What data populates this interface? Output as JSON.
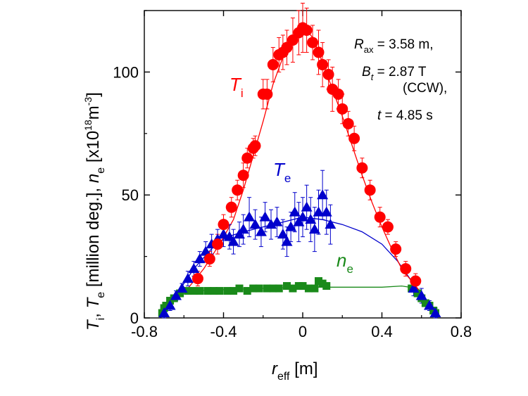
{
  "chart_data": {
    "type": "scatter",
    "xlim": [
      -0.8,
      0.8
    ],
    "ylim": [
      0,
      125
    ],
    "x_ticks": [
      "-0.8",
      "-0.4",
      "0",
      "0.4",
      "0.8"
    ],
    "x_tick_values": [
      -0.8,
      -0.4,
      0,
      0.4,
      0.8
    ],
    "y_ticks": [
      "0",
      "50",
      "100"
    ],
    "y_tick_values": [
      0,
      50,
      100
    ],
    "xlabel": {
      "sym": "r",
      "sub": "eff",
      "unit": " [m]"
    },
    "ylabel": {
      "t1": "T",
      "t1_sub": "i",
      "sep1": ", ",
      "t2": "T",
      "t2_sub": "e",
      "mid": " [million deg.], ",
      "t3": "n",
      "t3_sub": "e",
      "unit": " [x10",
      "exp": "18",
      "unit2": "m",
      "exp2": "-3",
      "close": "]"
    },
    "annotation": {
      "line1_sym": "R",
      "line1_sub": "ax",
      "line1_val": " = 3.58 m,",
      "line2_sym": "B",
      "line2_sub": "t",
      "line2_val": " = 2.87 T",
      "line3": "(CCW),",
      "line4_sym": "t",
      "line4_val": " = 4.85 s"
    },
    "series": [
      {
        "name": "T_i",
        "label_main": "T",
        "label_sub": "i",
        "color": "#ff0000",
        "marker": "circle",
        "points": [
          [
            -0.53,
            16
          ],
          [
            -0.47,
            24
          ],
          [
            -0.43,
            30
          ],
          [
            -0.4,
            38
          ],
          [
            -0.36,
            45
          ],
          [
            -0.33,
            52
          ],
          [
            -0.3,
            58
          ],
          [
            -0.28,
            65
          ],
          [
            -0.25,
            69
          ],
          [
            -0.24,
            70
          ],
          [
            -0.2,
            91
          ],
          [
            -0.18,
            91
          ],
          [
            -0.15,
            103
          ],
          [
            -0.12,
            107
          ],
          [
            -0.1,
            108
          ],
          [
            -0.08,
            110
          ],
          [
            -0.05,
            113
          ],
          [
            -0.02,
            116
          ],
          [
            0.0,
            118
          ],
          [
            0.02,
            117
          ],
          [
            0.05,
            112
          ],
          [
            0.08,
            108
          ],
          [
            0.1,
            103
          ],
          [
            0.13,
            99
          ],
          [
            0.15,
            93
          ],
          [
            0.18,
            91
          ],
          [
            0.2,
            85
          ],
          [
            0.23,
            79
          ],
          [
            0.26,
            73
          ],
          [
            0.3,
            61
          ],
          [
            0.34,
            52
          ],
          [
            0.39,
            41
          ],
          [
            0.43,
            37
          ],
          [
            0.47,
            28
          ],
          [
            0.52,
            20
          ],
          [
            0.57,
            15
          ]
        ],
        "errors": [
          3,
          3,
          4,
          4,
          4,
          4,
          5,
          4,
          4,
          4,
          6,
          6,
          7,
          7,
          7,
          7,
          9,
          9,
          10,
          9,
          7,
          9,
          9,
          6,
          9,
          6,
          6,
          5,
          5,
          4,
          4,
          4,
          3,
          3,
          3,
          3
        ],
        "curve": [
          [
            -0.58,
            12
          ],
          [
            -0.5,
            20
          ],
          [
            -0.42,
            30
          ],
          [
            -0.35,
            40
          ],
          [
            -0.3,
            52
          ],
          [
            -0.25,
            66
          ],
          [
            -0.2,
            80
          ],
          [
            -0.15,
            95
          ],
          [
            -0.1,
            106
          ],
          [
            -0.05,
            114
          ],
          [
            0.0,
            119
          ],
          [
            0.05,
            114
          ],
          [
            0.1,
            104
          ],
          [
            0.15,
            93
          ],
          [
            0.2,
            82
          ],
          [
            0.25,
            70
          ],
          [
            0.3,
            58
          ],
          [
            0.35,
            47
          ],
          [
            0.4,
            37
          ],
          [
            0.45,
            28
          ],
          [
            0.5,
            20
          ],
          [
            0.55,
            15
          ],
          [
            0.6,
            10
          ],
          [
            0.65,
            3
          ]
        ]
      },
      {
        "name": "T_e",
        "label_main": "T",
        "label_sub": "e",
        "color": "#0000cc",
        "marker": "triangle",
        "points": [
          [
            -0.7,
            2
          ],
          [
            -0.67,
            5
          ],
          [
            -0.64,
            9
          ],
          [
            -0.61,
            12
          ],
          [
            -0.58,
            16
          ],
          [
            -0.55,
            20
          ],
          [
            -0.52,
            24
          ],
          [
            -0.49,
            27
          ],
          [
            -0.46,
            30
          ],
          [
            -0.43,
            32
          ],
          [
            -0.4,
            34
          ],
          [
            -0.37,
            33
          ],
          [
            -0.35,
            31
          ],
          [
            -0.32,
            34
          ],
          [
            -0.3,
            36
          ],
          [
            -0.27,
            41
          ],
          [
            -0.24,
            38
          ],
          [
            -0.21,
            35
          ],
          [
            -0.19,
            41
          ],
          [
            -0.16,
            38
          ],
          [
            -0.13,
            39
          ],
          [
            -0.1,
            34
          ],
          [
            -0.08,
            31
          ],
          [
            -0.06,
            37
          ],
          [
            -0.04,
            43
          ],
          [
            -0.02,
            39
          ],
          [
            0.0,
            41
          ],
          [
            0.02,
            45
          ],
          [
            0.04,
            40
          ],
          [
            0.06,
            36
          ],
          [
            0.08,
            43
          ],
          [
            0.1,
            50
          ],
          [
            0.12,
            43
          ],
          [
            0.14,
            38
          ],
          [
            0.56,
            12
          ],
          [
            0.6,
            9
          ],
          [
            0.64,
            5
          ],
          [
            0.67,
            2
          ]
        ],
        "errors": [
          2,
          2,
          2,
          2,
          3,
          3,
          3,
          4,
          4,
          4,
          5,
          5,
          5,
          5,
          6,
          8,
          6,
          6,
          6,
          6,
          6,
          6,
          6,
          6,
          8,
          8,
          8,
          9,
          9,
          9,
          9,
          10,
          9,
          8,
          3,
          3,
          2,
          2
        ],
        "curve": [
          [
            -0.72,
            0
          ],
          [
            -0.65,
            8
          ],
          [
            -0.55,
            20
          ],
          [
            -0.45,
            29
          ],
          [
            -0.38,
            33
          ],
          [
            -0.3,
            35
          ],
          [
            -0.2,
            37
          ],
          [
            -0.1,
            39
          ],
          [
            0.0,
            41
          ],
          [
            0.1,
            40
          ],
          [
            0.2,
            38
          ],
          [
            0.3,
            35
          ],
          [
            0.4,
            30
          ],
          [
            0.48,
            23
          ],
          [
            0.55,
            15
          ],
          [
            0.6,
            9
          ],
          [
            0.65,
            3
          ],
          [
            0.68,
            0
          ]
        ]
      },
      {
        "name": "n_e",
        "label_main": "n",
        "label_sub": "e",
        "color": "#1a8a1a",
        "marker": "square",
        "points": [
          [
            -0.71,
            2
          ],
          [
            -0.7,
            4
          ],
          [
            -0.69,
            5
          ],
          [
            -0.67,
            7
          ],
          [
            -0.65,
            8
          ],
          [
            -0.62,
            10
          ],
          [
            -0.58,
            11
          ],
          [
            -0.55,
            11
          ],
          [
            -0.52,
            11
          ],
          [
            -0.48,
            11
          ],
          [
            -0.45,
            11
          ],
          [
            -0.42,
            11
          ],
          [
            -0.38,
            11
          ],
          [
            -0.35,
            11
          ],
          [
            -0.32,
            12
          ],
          [
            -0.28,
            11
          ],
          [
            -0.25,
            12
          ],
          [
            -0.22,
            12
          ],
          [
            -0.18,
            12
          ],
          [
            -0.15,
            12
          ],
          [
            -0.12,
            12
          ],
          [
            -0.08,
            13
          ],
          [
            -0.05,
            12
          ],
          [
            -0.02,
            13
          ],
          [
            0.0,
            13
          ],
          [
            0.03,
            12
          ],
          [
            0.06,
            12
          ],
          [
            0.08,
            15
          ],
          [
            0.1,
            14
          ],
          [
            0.12,
            13
          ],
          [
            0.55,
            12
          ],
          [
            0.58,
            10
          ],
          [
            0.6,
            8
          ],
          [
            0.62,
            6
          ],
          [
            0.64,
            5
          ],
          [
            0.66,
            3
          ],
          [
            0.67,
            2
          ]
        ],
        "curve": [
          [
            -0.72,
            3
          ],
          [
            -0.65,
            9
          ],
          [
            -0.55,
            11
          ],
          [
            -0.4,
            11.5
          ],
          [
            -0.2,
            12
          ],
          [
            0.0,
            12.5
          ],
          [
            0.2,
            12.5
          ],
          [
            0.4,
            12.5
          ],
          [
            0.5,
            13
          ],
          [
            0.58,
            12
          ],
          [
            0.62,
            8
          ],
          [
            0.66,
            3
          ]
        ]
      }
    ]
  }
}
